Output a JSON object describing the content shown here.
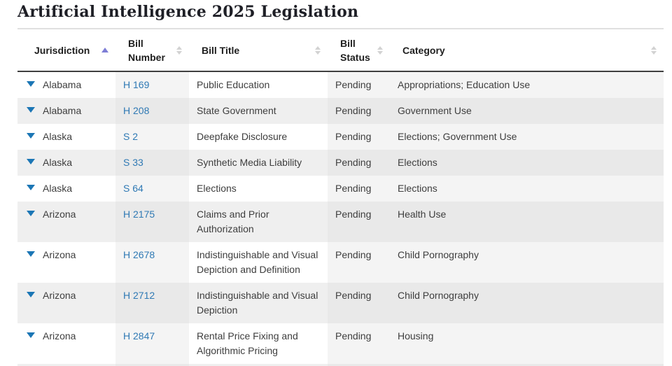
{
  "page": {
    "title": "Artificial Intelligence 2025 Legislation"
  },
  "table": {
    "columns": [
      {
        "label": "Jurisdiction",
        "sort": "asc"
      },
      {
        "label": "Bill Number",
        "sort": "none"
      },
      {
        "label": "Bill Title",
        "sort": "none"
      },
      {
        "label": "Bill Status",
        "sort": "none"
      },
      {
        "label": "Category",
        "sort": "none"
      }
    ],
    "rows": [
      {
        "jurisdiction": "Alabama",
        "bill_number": "H 169",
        "bill_title": "Public Education",
        "bill_status": "Pending",
        "category": "Appropriations; Education Use"
      },
      {
        "jurisdiction": "Alabama",
        "bill_number": "H 208",
        "bill_title": "State Government",
        "bill_status": "Pending",
        "category": "Government Use"
      },
      {
        "jurisdiction": "Alaska",
        "bill_number": "S 2",
        "bill_title": "Deepfake Disclosure",
        "bill_status": "Pending",
        "category": "Elections; Government Use"
      },
      {
        "jurisdiction": "Alaska",
        "bill_number": "S 33",
        "bill_title": "Synthetic Media Liability",
        "bill_status": "Pending",
        "category": "Elections"
      },
      {
        "jurisdiction": "Alaska",
        "bill_number": "S 64",
        "bill_title": "Elections",
        "bill_status": "Pending",
        "category": "Elections"
      },
      {
        "jurisdiction": "Arizona",
        "bill_number": "H 2175",
        "bill_title": "Claims and Prior Authorization",
        "bill_status": "Pending",
        "category": "Health Use"
      },
      {
        "jurisdiction": "Arizona",
        "bill_number": "H 2678",
        "bill_title": "Indistinguishable and Visual Depiction and Definition",
        "bill_status": "Pending",
        "category": "Child Pornography"
      },
      {
        "jurisdiction": "Arizona",
        "bill_number": "H 2712",
        "bill_title": "Indistinguishable and Visual Depiction",
        "bill_status": "Pending",
        "category": "Child Pornography"
      },
      {
        "jurisdiction": "Arizona",
        "bill_number": "H 2847",
        "bill_title": "Rental Price Fixing and Algorithmic Pricing",
        "bill_status": "Pending",
        "category": "Housing"
      }
    ],
    "colors": {
      "link_blue": "#2f79b4",
      "expander_blue": "#1b76b5",
      "sort_active_purple": "#7d7dd6",
      "sort_inactive_gray": "#d2d2d2",
      "stripe_gray": "#efefef",
      "column_tint": "#f4f4f4"
    }
  }
}
